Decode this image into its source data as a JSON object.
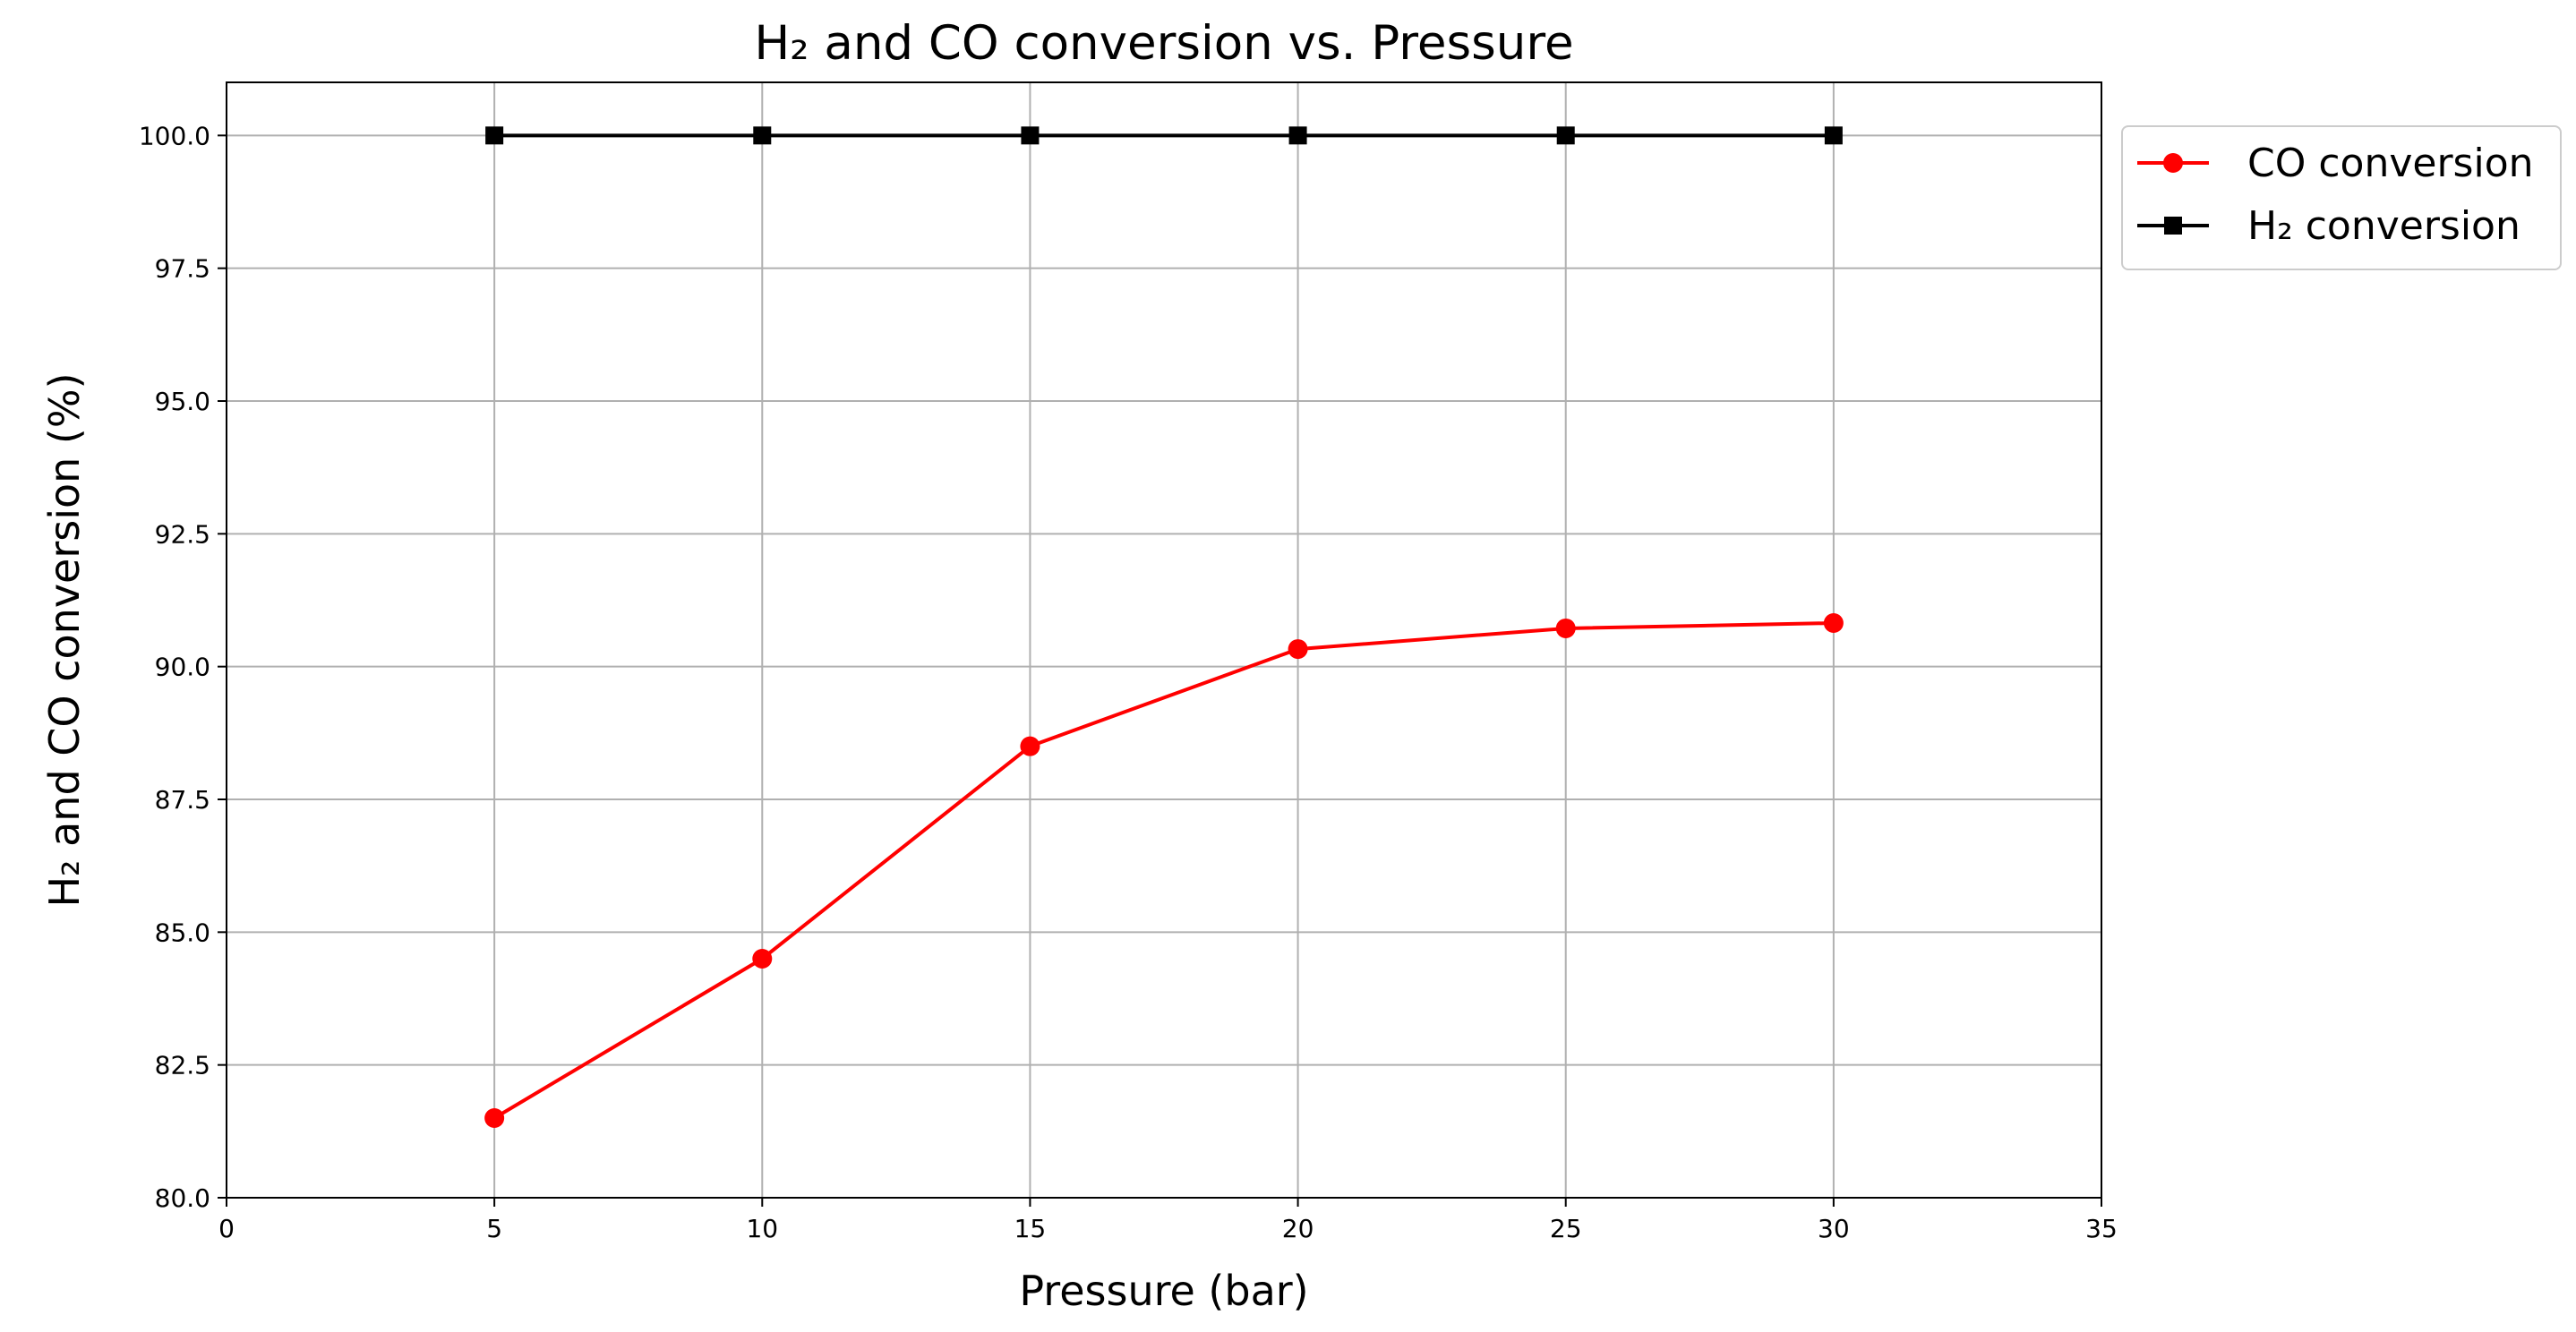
{
  "chart_data": {
    "type": "line",
    "title": "H₂ and CO conversion vs. Pressure",
    "xlabel": "Pressure (bar)",
    "ylabel": "H₂ and CO conversion (%)",
    "xlim": [
      0,
      35
    ],
    "ylim": [
      80,
      101
    ],
    "xticks": [
      0,
      5,
      10,
      15,
      20,
      25,
      30,
      35
    ],
    "xtick_labels": [
      "0",
      "5",
      "10",
      "15",
      "20",
      "25",
      "30",
      "35"
    ],
    "yticks": [
      80,
      82.5,
      85,
      87.5,
      90,
      92.5,
      95,
      97.5,
      100
    ],
    "ytick_labels": [
      "80.0",
      "82.5",
      "85.0",
      "87.5",
      "90.0",
      "92.5",
      "95.0",
      "97.5",
      "100.0"
    ],
    "grid": true,
    "legend_position": "outside-top-right",
    "series": [
      {
        "name": "CO conversion",
        "color": "#ff0000",
        "marker": "circle",
        "x": [
          5,
          10,
          15,
          20,
          25,
          30
        ],
        "values": [
          81.5,
          84.5,
          88.5,
          90.33,
          90.72,
          90.82
        ]
      },
      {
        "name": "H₂ conversion",
        "color": "#000000",
        "marker": "square",
        "x": [
          5,
          10,
          15,
          20,
          25,
          30
        ],
        "values": [
          100,
          100,
          100,
          100,
          100,
          100
        ]
      }
    ]
  }
}
